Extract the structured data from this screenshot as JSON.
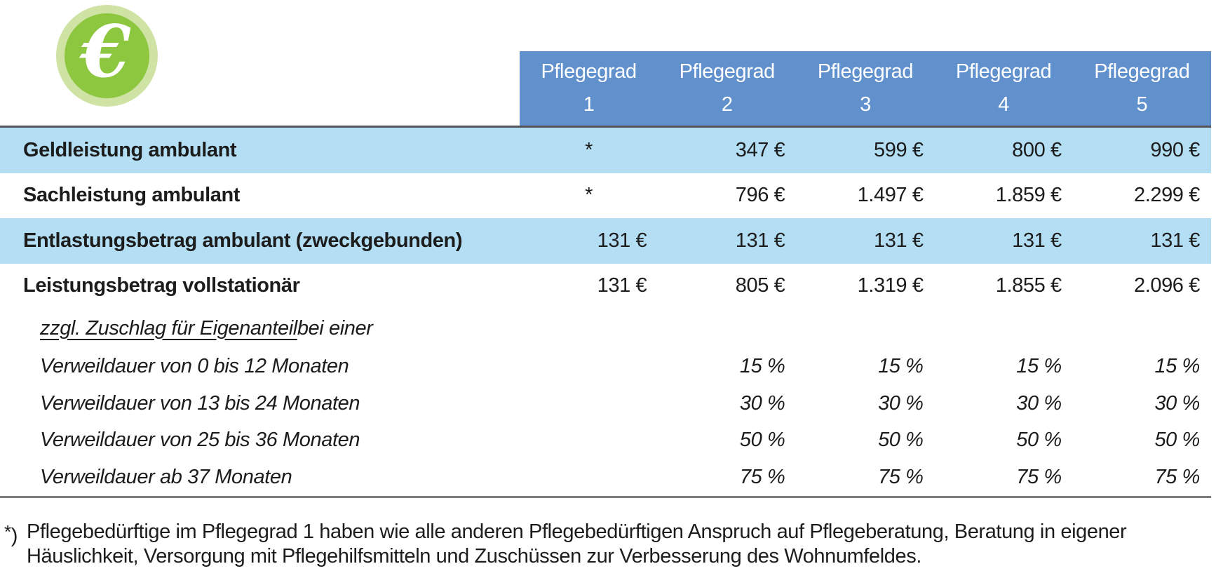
{
  "icon": {
    "glyph": "€"
  },
  "colors": {
    "header_blue": "#6191cd",
    "row_light_blue": "#b3def4",
    "icon_green": "#8dc63f",
    "icon_ring_green": "#cfe3a5",
    "separator_dark": "#54555b",
    "separator_gray": "#7b7c7e",
    "header_text": "#ffffff",
    "body_text": "#1c1c1c"
  },
  "table": {
    "header": {
      "label": "Pflegegrad",
      "columns": [
        "1",
        "2",
        "3",
        "4",
        "5"
      ]
    },
    "rows": [
      {
        "style": "main",
        "shade": true,
        "label": "Geldleistung ambulant",
        "values": [
          "*",
          "347 €",
          "599 €",
          "800 €",
          "990 €"
        ]
      },
      {
        "style": "main",
        "shade": false,
        "label": "Sachleistung ambulant",
        "values": [
          "*",
          "796 €",
          "1.497 €",
          "1.859 €",
          "2.299 €"
        ]
      },
      {
        "style": "main",
        "shade": true,
        "label": "Entlastungsbetrag ambulant (zweckgebunden)",
        "values": [
          "131 €",
          "131 €",
          "131 €",
          "131 €",
          "131 €"
        ]
      },
      {
        "style": "main",
        "shade": false,
        "label": "Leistungsbetrag vollstationär",
        "values": [
          "131 €",
          "805 €",
          "1.319 €",
          "1.855 €",
          "2.096 €"
        ]
      },
      {
        "style": "subhead",
        "shade": false,
        "label_underlined": "zzgl. Zuschlag für Eigenanteil",
        "label_rest": " bei einer",
        "values": [
          "",
          "",
          "",
          "",
          ""
        ]
      },
      {
        "style": "sub",
        "shade": false,
        "label": "Verweildauer von 0 bis 12 Monaten",
        "values": [
          "",
          "15 %",
          "15 %",
          "15 %",
          "15 %"
        ]
      },
      {
        "style": "sub",
        "shade": false,
        "label": "Verweildauer von 13 bis 24 Monaten",
        "values": [
          "",
          "30 %",
          "30 %",
          "30 %",
          "30 %"
        ]
      },
      {
        "style": "sub",
        "shade": false,
        "label": "Verweildauer von 25 bis 36 Monaten",
        "values": [
          "",
          "50 %",
          "50 %",
          "50 %",
          "50 %"
        ]
      },
      {
        "style": "sub",
        "shade": false,
        "label": "Verweildauer ab 37 Monaten",
        "values": [
          "",
          "75 %",
          "75 %",
          "75 %",
          "75 %"
        ]
      }
    ]
  },
  "footnote": {
    "marker_star": "*",
    "marker_paren": ")",
    "lines": [
      "Pflegebedürftige im Pflegegrad 1 haben wie alle anderen Pflegebedürftigen Anspruch auf Pflegeberatung, Beratung in eigener",
      "Häuslichkeit, Versorgung mit Pflegehilfsmitteln und Zuschüssen zur Verbesserung des Wohnumfeldes."
    ]
  }
}
